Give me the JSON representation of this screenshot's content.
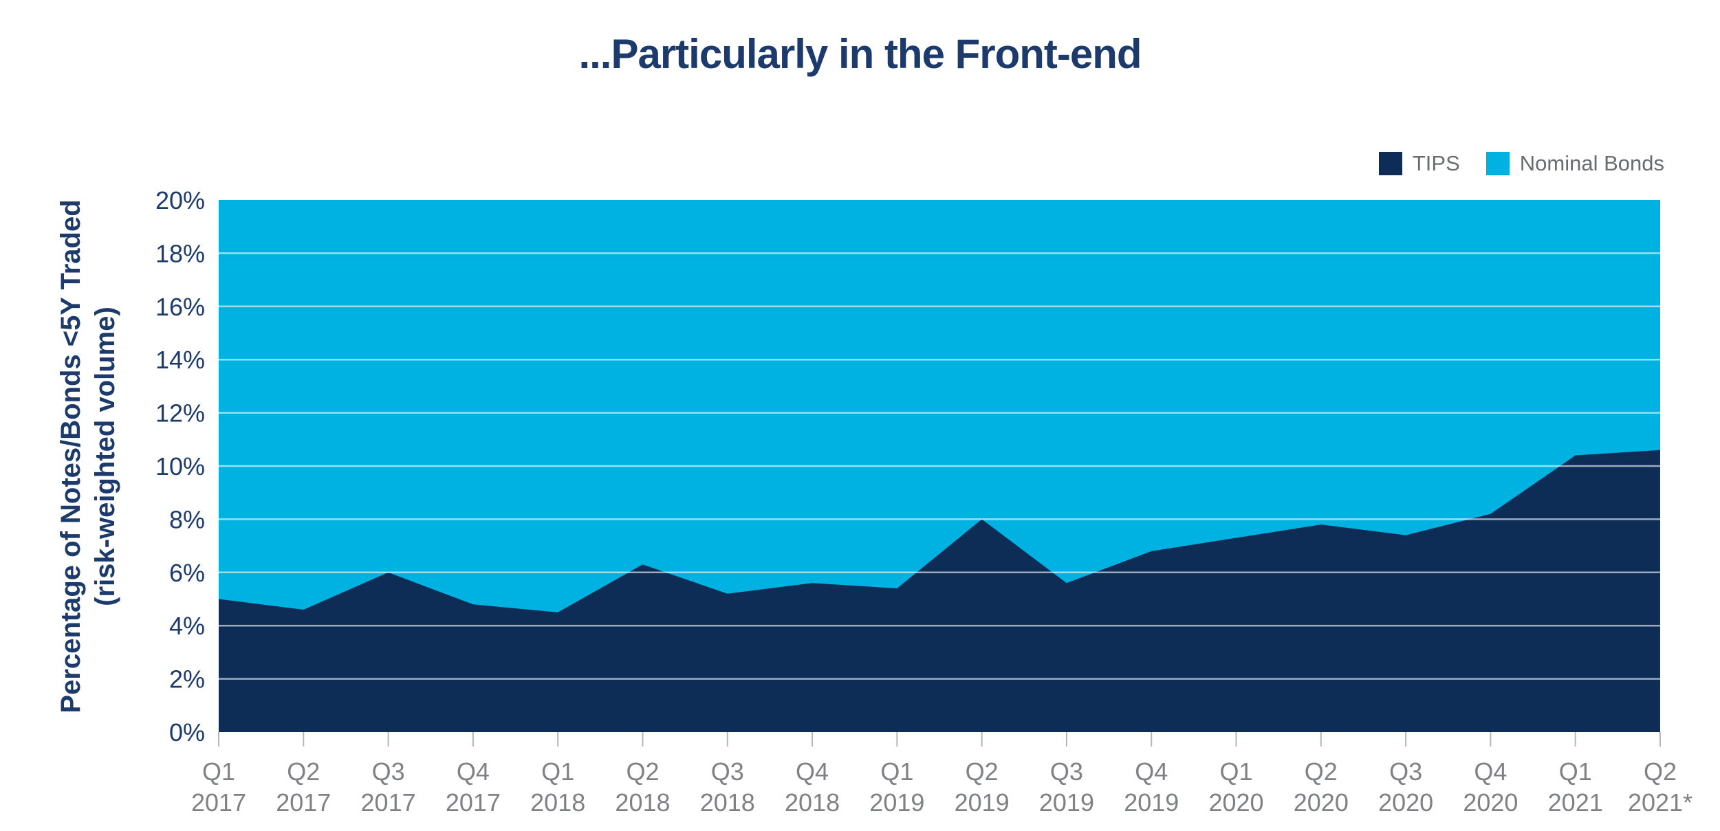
{
  "colors": {
    "background": "#ffffff",
    "navy": "#0e2d56",
    "cyan": "#00b2e2",
    "title_text": "#1c3a6b",
    "axis_text": "#1c3a6b",
    "x_label_text": "#808184",
    "legend_text": "#6b6c6e",
    "tick_mark": "#b5b6b9",
    "gridline": "rgba(255,255,255,0.6)"
  },
  "chart_data": {
    "type": "area",
    "stacked": true,
    "title": "...Particularly in the Front-end",
    "ylabel": "Percentage of Notes/Bonds <5Y Traded (risk-weighted volume)",
    "ylabel_lines": [
      "Percentage of Notes/Bonds <5Y Traded",
      "(risk-weighted volume)"
    ],
    "xlabel": "",
    "ylim": [
      0,
      20
    ],
    "yticks": [
      0,
      2,
      4,
      6,
      8,
      10,
      12,
      14,
      16,
      18,
      20
    ],
    "ytick_labels": [
      "0%",
      "2%",
      "4%",
      "6%",
      "8%",
      "10%",
      "12%",
      "14%",
      "16%",
      "18%",
      "20%"
    ],
    "grid": "horizontal white lines every 2%",
    "legend_position": "top-right",
    "categories": [
      {
        "quarter": "Q1",
        "year": "2017"
      },
      {
        "quarter": "Q2",
        "year": "2017"
      },
      {
        "quarter": "Q3",
        "year": "2017"
      },
      {
        "quarter": "Q4",
        "year": "2017"
      },
      {
        "quarter": "Q1",
        "year": "2018"
      },
      {
        "quarter": "Q2",
        "year": "2018"
      },
      {
        "quarter": "Q3",
        "year": "2018"
      },
      {
        "quarter": "Q4",
        "year": "2018"
      },
      {
        "quarter": "Q1",
        "year": "2019"
      },
      {
        "quarter": "Q2",
        "year": "2019"
      },
      {
        "quarter": "Q3",
        "year": "2019"
      },
      {
        "quarter": "Q4",
        "year": "2019"
      },
      {
        "quarter": "Q1",
        "year": "2020"
      },
      {
        "quarter": "Q2",
        "year": "2020"
      },
      {
        "quarter": "Q3",
        "year": "2020"
      },
      {
        "quarter": "Q4",
        "year": "2020"
      },
      {
        "quarter": "Q1",
        "year": "2021"
      },
      {
        "quarter": "Q2",
        "year": "2021*"
      }
    ],
    "series": [
      {
        "name": "TIPS",
        "color": "#0e2d56",
        "values": [
          5.0,
          4.6,
          6.0,
          4.8,
          4.5,
          6.3,
          5.2,
          5.6,
          5.4,
          8.0,
          5.6,
          6.8,
          7.3,
          7.8,
          7.4,
          8.2,
          10.4,
          10.6
        ]
      },
      {
        "name": "Nominal Bonds",
        "color": "#00b2e2",
        "note": "stacked remainder above TIPS, fills to top of axis (clipped at 20%)"
      }
    ]
  }
}
